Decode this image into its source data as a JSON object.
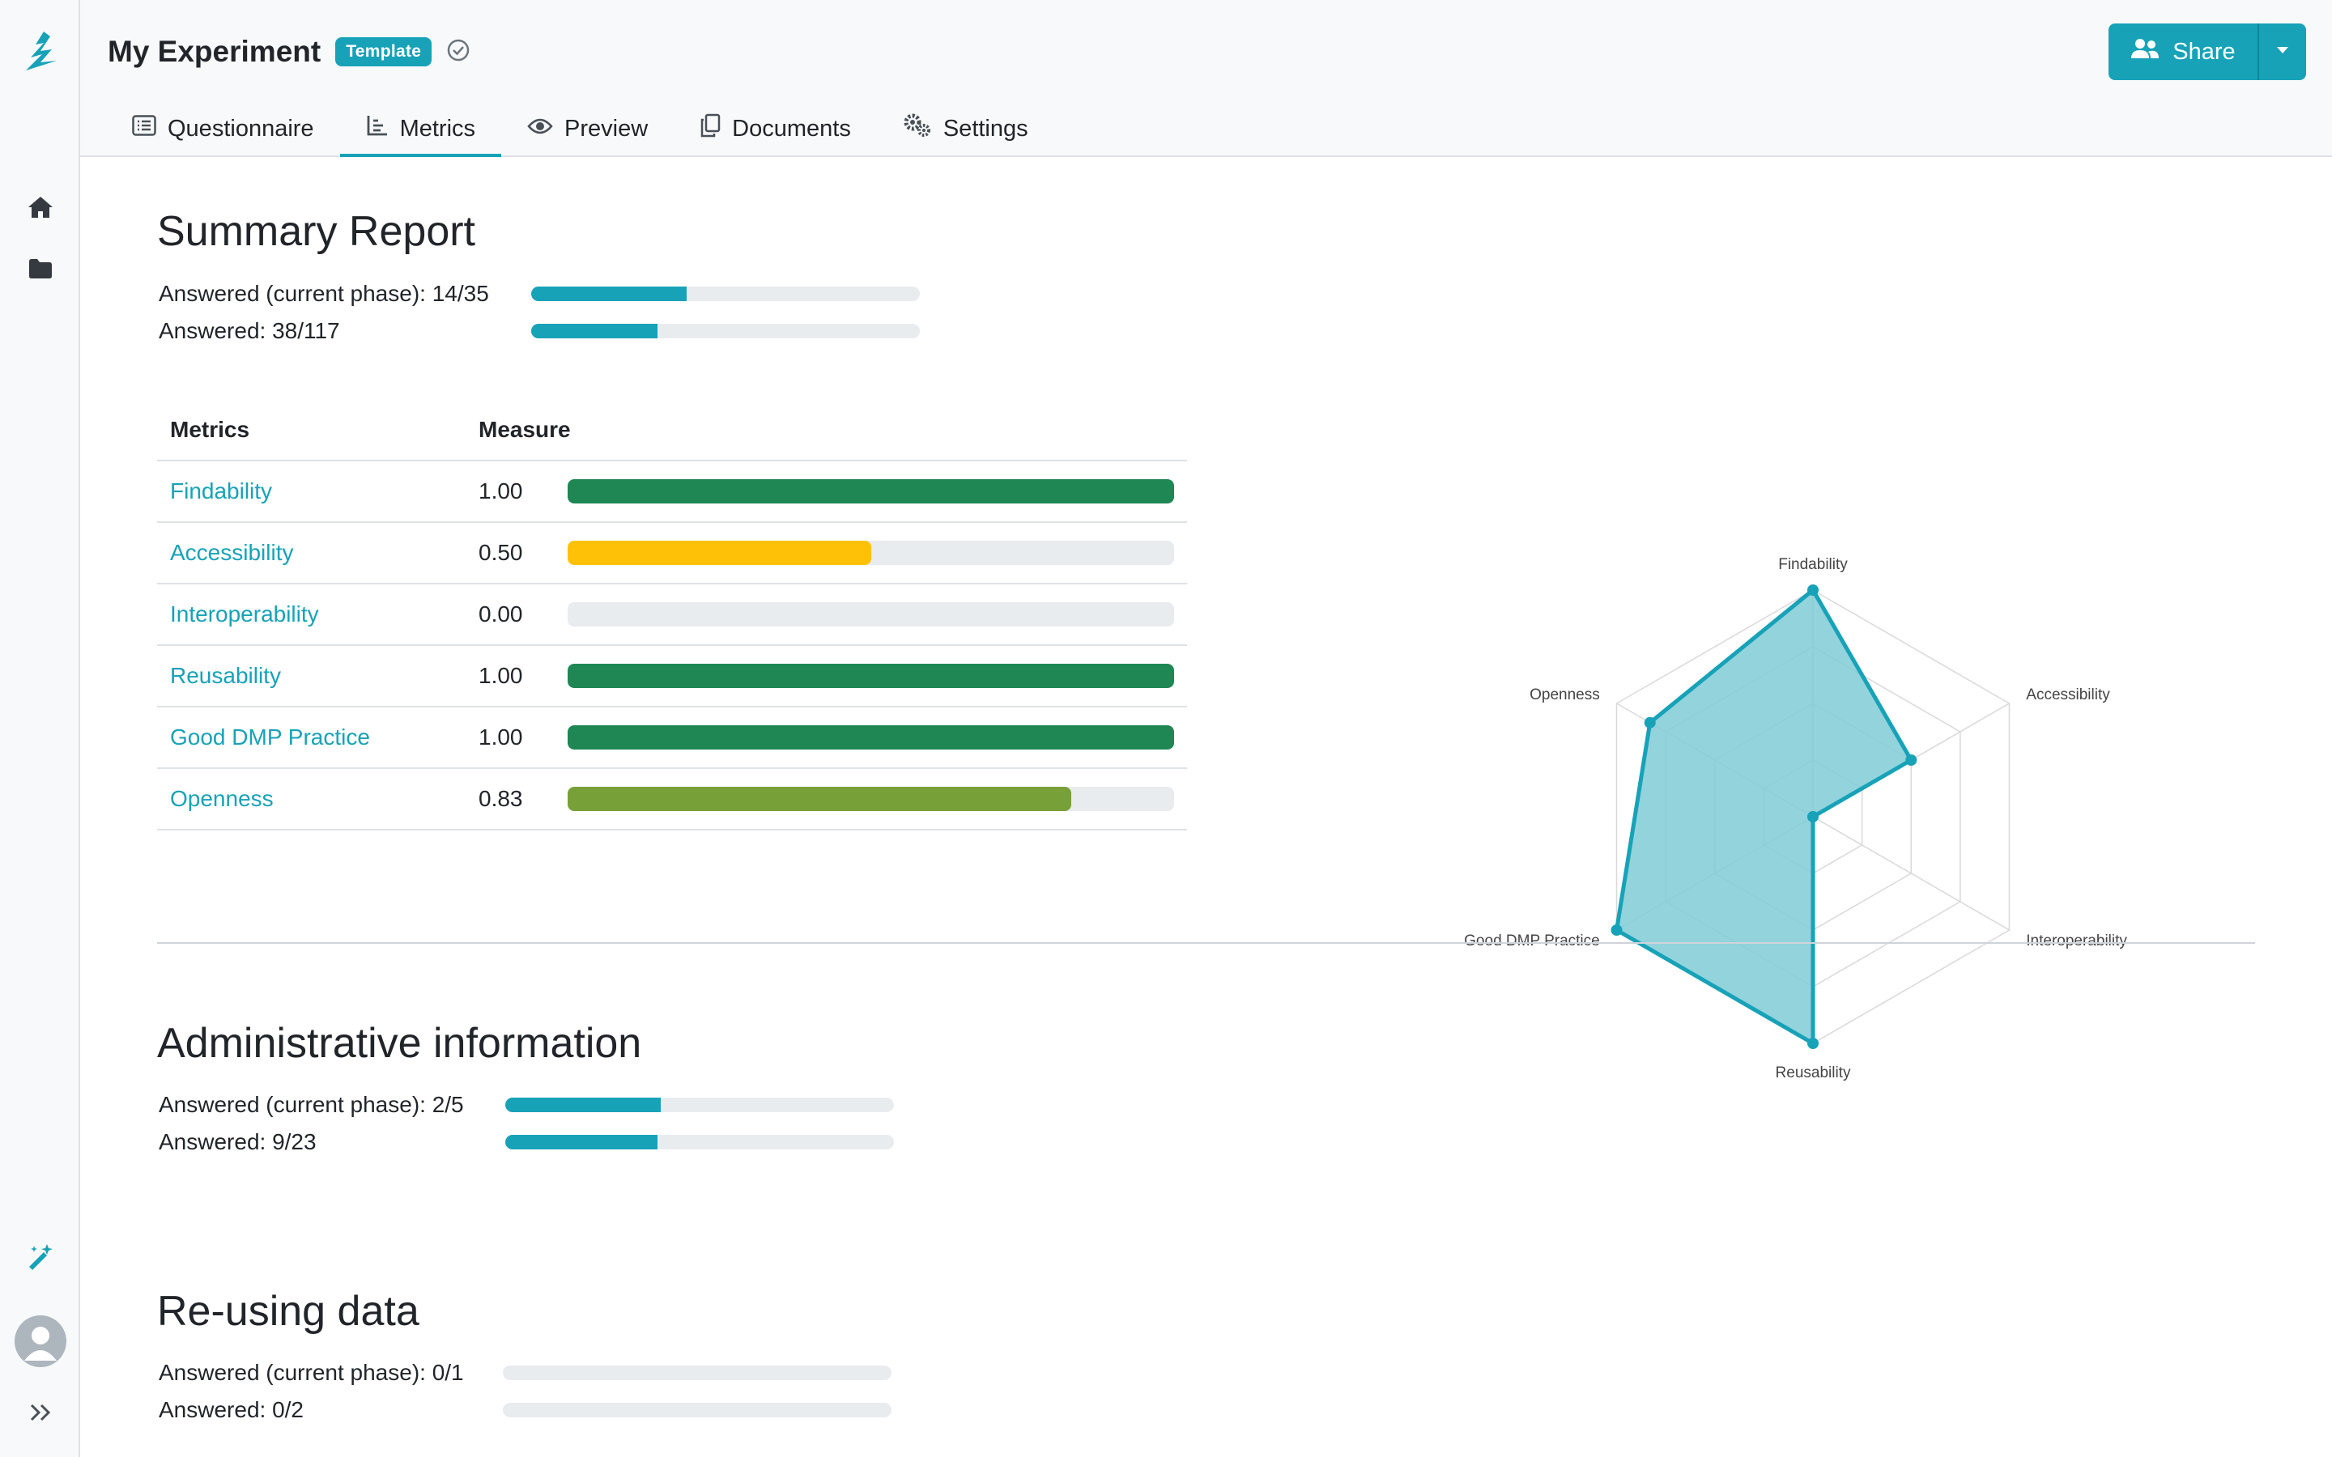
{
  "sidebar": {
    "logo": "wizard-logo-icon",
    "items": [
      {
        "icon": "home-icon"
      },
      {
        "icon": "folder-icon"
      },
      {
        "icon": "magic-wand-icon"
      },
      {
        "icon": "avatar"
      },
      {
        "icon": "expand-icon"
      }
    ]
  },
  "header": {
    "title": "My Experiment",
    "badge": "Template",
    "share_label": "Share",
    "tabs": [
      {
        "label": "Questionnaire",
        "icon": "list-icon"
      },
      {
        "label": "Metrics",
        "icon": "chart-icon",
        "active": true
      },
      {
        "label": "Preview",
        "icon": "eye-icon"
      },
      {
        "label": "Documents",
        "icon": "copy-icon"
      },
      {
        "label": "Settings",
        "icon": "gears-icon"
      }
    ]
  },
  "summary": {
    "title": "Summary Report",
    "current_phase": {
      "label": "Answered (current phase): 14/35",
      "value": 14,
      "total": 35
    },
    "all": {
      "label": "Answered: 38/117",
      "value": 38,
      "total": 117
    },
    "table": {
      "col_metrics": "Metrics",
      "col_measure": "Measure",
      "rows": [
        {
          "name": "Findability",
          "value_text": "1.00",
          "value": 1.0,
          "color": "#1e8754"
        },
        {
          "name": "Accessibility",
          "value_text": "0.50",
          "value": 0.5,
          "color": "#ffc107"
        },
        {
          "name": "Interoperability",
          "value_text": "0.00",
          "value": 0.0,
          "color": "#dc3545"
        },
        {
          "name": "Reusability",
          "value_text": "1.00",
          "value": 1.0,
          "color": "#1e8754"
        },
        {
          "name": "Good DMP Practice",
          "value_text": "1.00",
          "value": 1.0,
          "color": "#1e8754"
        },
        {
          "name": "Openness",
          "value_text": "0.83",
          "value": 0.83,
          "color": "#78a038"
        }
      ]
    }
  },
  "chart_data": {
    "type": "radar",
    "axes": [
      "Findability",
      "Accessibility",
      "Interoperability",
      "Reusability",
      "Good DMP Practice",
      "Openness"
    ],
    "values": [
      1.0,
      0.5,
      0.0,
      1.0,
      1.0,
      0.83
    ],
    "range": [
      0,
      1
    ],
    "rings": 4,
    "fill_color": "#7fcbd6",
    "stroke_color": "#17a2b8"
  },
  "sections": [
    {
      "title": "Administrative information",
      "current_phase": {
        "label": "Answered (current phase): 2/5",
        "value": 2,
        "total": 5
      },
      "all": {
        "label": "Answered: 9/23",
        "value": 9,
        "total": 23
      }
    },
    {
      "title": "Re-using data",
      "current_phase": {
        "label": "Answered (current phase): 0/1",
        "value": 0,
        "total": 1
      },
      "all": {
        "label": "Answered: 0/2",
        "value": 0,
        "total": 2
      }
    }
  ],
  "colors": {
    "accent": "#17a2b8",
    "track": "#e9ecef"
  }
}
